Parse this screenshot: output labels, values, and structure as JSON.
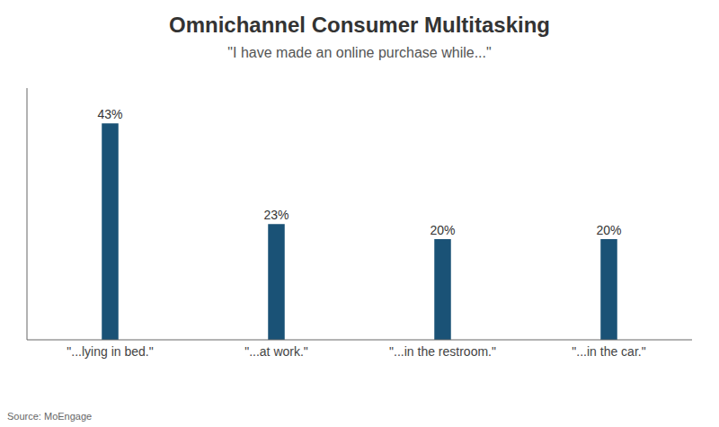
{
  "chart_data": {
    "type": "bar",
    "title": "Omnichannel Consumer Multitasking",
    "subtitle": "\"I have made an online purchase while...\"",
    "categories": [
      "\"...lying in bed.\"",
      "\"...at work.\"",
      "\"...in the restroom.\"",
      "\"...in the car.\""
    ],
    "values": [
      43,
      23,
      20,
      20
    ],
    "value_labels": [
      "43%",
      "23%",
      "20%",
      "20%"
    ],
    "data_labels": true,
    "color": "#1a5276",
    "ylim": [
      0,
      50
    ],
    "grid": false,
    "tick_labels": "x",
    "annotations": [
      "Source: MoEngage"
    ]
  }
}
